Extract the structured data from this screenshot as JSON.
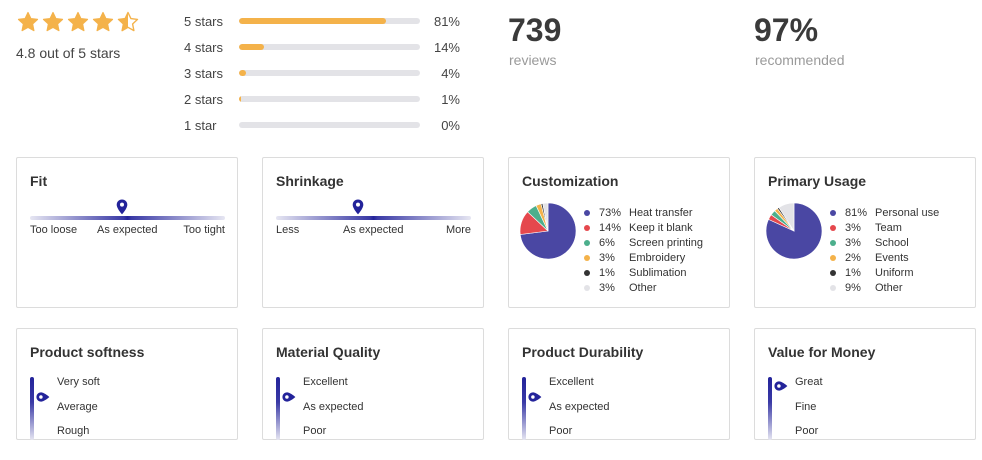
{
  "summary": {
    "rating": 4.8,
    "rating_text": "4.8 out of 5 stars",
    "reviews_count": "739",
    "reviews_label": "reviews",
    "recommended_pct": "97%",
    "recommended_label": "recommended",
    "star_color": "#f4b24a"
  },
  "distribution": [
    {
      "label": "5 stars",
      "pct": "81%",
      "value": 81
    },
    {
      "label": "4 stars",
      "pct": "14%",
      "value": 14
    },
    {
      "label": "3 stars",
      "pct": "4%",
      "value": 4
    },
    {
      "label": "2 stars",
      "pct": "1%",
      "value": 1
    },
    {
      "label": "1 star",
      "pct": "0%",
      "value": 0
    }
  ],
  "fit": {
    "title": "Fit",
    "left": "Too loose",
    "mid": "As expected",
    "right": "Too tight",
    "value": 0.47
  },
  "shrinkage": {
    "title": "Shrinkage",
    "left": "Less",
    "mid": "As expected",
    "right": "More",
    "value": 0.42
  },
  "customization": {
    "title": "Customization",
    "items": [
      {
        "pct": "73%",
        "label": "Heat transfer",
        "value": 73,
        "color": "#4a47a3"
      },
      {
        "pct": "14%",
        "label": "Keep it blank",
        "value": 14,
        "color": "#e5484d"
      },
      {
        "pct": "6%",
        "label": "Screen printing",
        "value": 6,
        "color": "#4caf8c"
      },
      {
        "pct": "3%",
        "label": "Embroidery",
        "value": 3,
        "color": "#f4b24a"
      },
      {
        "pct": "1%",
        "label": "Sublimation",
        "value": 1,
        "color": "#333333"
      },
      {
        "pct": "3%",
        "label": "Other",
        "value": 3,
        "color": "#e3e3e7"
      }
    ]
  },
  "primary_usage": {
    "title": "Primary Usage",
    "items": [
      {
        "pct": "81%",
        "label": "Personal use",
        "value": 81,
        "color": "#4a47a3"
      },
      {
        "pct": "3%",
        "label": "Team",
        "value": 3,
        "color": "#e5484d"
      },
      {
        "pct": "3%",
        "label": "School",
        "value": 3,
        "color": "#4caf8c"
      },
      {
        "pct": "2%",
        "label": "Events",
        "value": 2,
        "color": "#f4b24a"
      },
      {
        "pct": "1%",
        "label": "Uniform",
        "value": 1,
        "color": "#333333"
      },
      {
        "pct": "9%",
        "label": "Other",
        "value": 9,
        "color": "#e3e3e7"
      }
    ]
  },
  "softness": {
    "title": "Product softness",
    "top": "Very soft",
    "mid": "Average",
    "bottom": "Rough"
  },
  "material": {
    "title": "Material Quality",
    "top": "Excellent",
    "mid": "As expected",
    "bottom": "Poor"
  },
  "durability": {
    "title": "Product Durability",
    "top": "Excellent",
    "mid": "As expected",
    "bottom": "Poor"
  },
  "value": {
    "title": "Value for Money",
    "top": "Great",
    "mid": "Fine",
    "bottom": "Poor"
  },
  "accent_color": "#23239a"
}
